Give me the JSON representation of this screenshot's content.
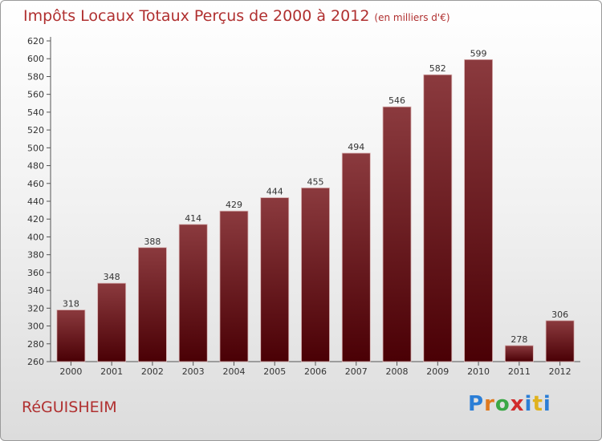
{
  "header": {
    "title": "Impôts Locaux Totaux Perçus de 2000 à 2012",
    "unit": "(en milliers d'€)"
  },
  "footer": {
    "commune": "RéGUISHEIM",
    "logo": "Proxiti"
  },
  "colors": {
    "bar_top": "#8b3a3e",
    "bar_bottom": "#4a0005",
    "title": "#b03030"
  },
  "chart_data": {
    "type": "bar",
    "categories": [
      "2000",
      "2001",
      "2002",
      "2003",
      "2004",
      "2005",
      "2006",
      "2007",
      "2008",
      "2009",
      "2010",
      "2011",
      "2012"
    ],
    "values": [
      318,
      348,
      388,
      414,
      429,
      444,
      455,
      494,
      546,
      582,
      599,
      278,
      306
    ],
    "ylim": [
      260,
      620
    ],
    "ytick_step": 20,
    "grid": false,
    "data_labels": true
  }
}
